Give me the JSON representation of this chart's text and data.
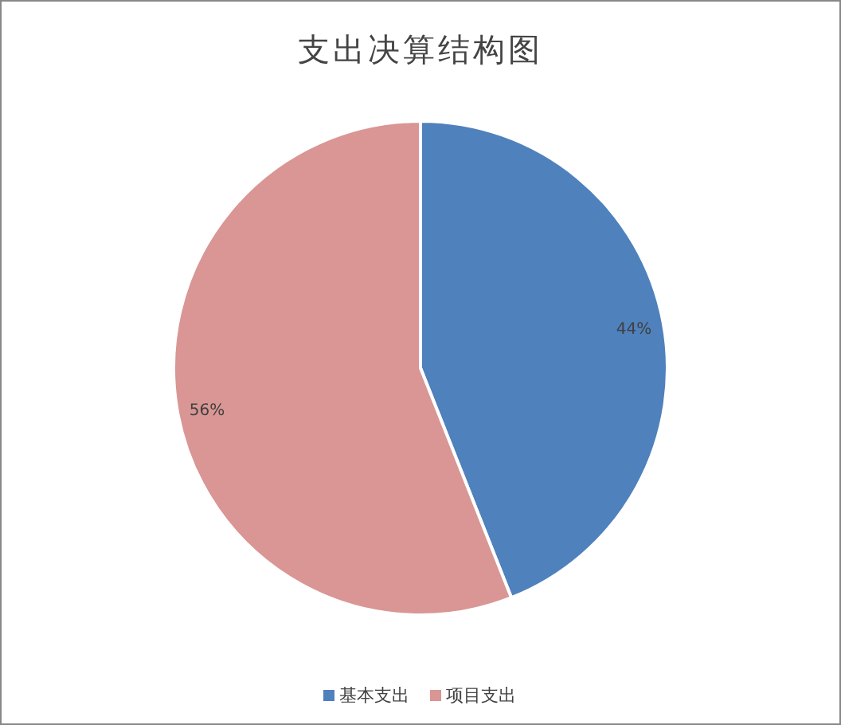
{
  "chart_data": {
    "type": "pie",
    "title": "支出决算结构图",
    "categories": [
      "基本支出",
      "项目支出"
    ],
    "values": [
      44,
      56
    ],
    "colors": [
      "#4f81bd",
      "#d99694"
    ],
    "value_labels": [
      "44%",
      "56%"
    ],
    "legend": "bottom"
  }
}
